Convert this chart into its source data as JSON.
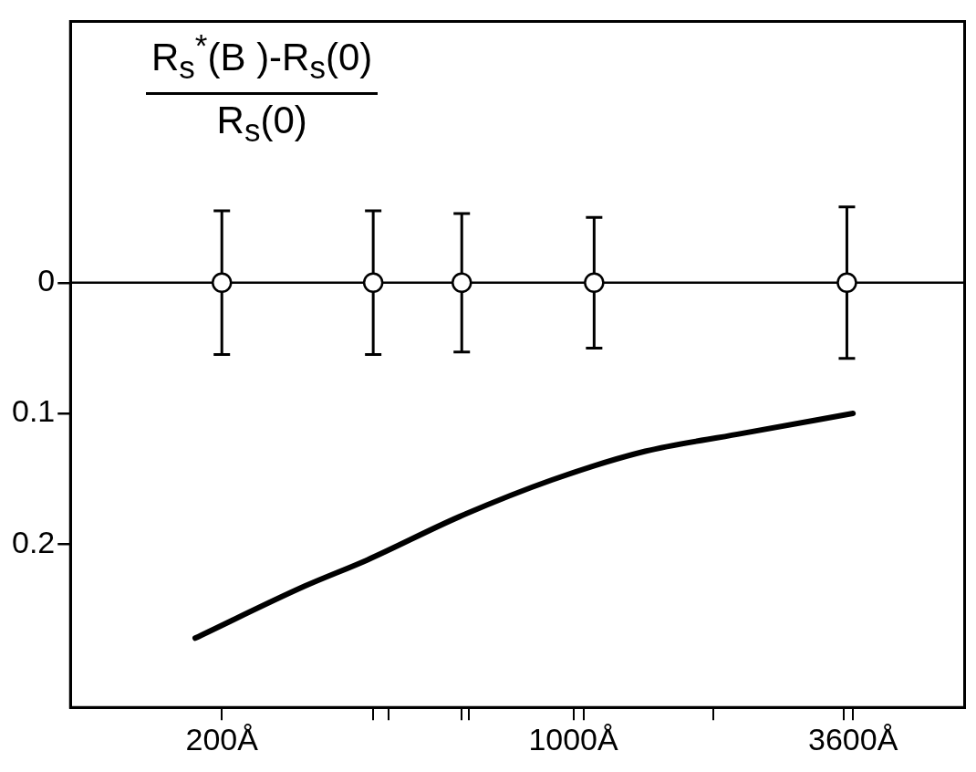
{
  "chart_data": {
    "type": "scatter",
    "ylabel": "R$_{s}$$^{*}$(B )-R$_{s}$(0)\nR$_{s}$(0)",
    "log": "x",
    "xlim": [
      100,
      6000
    ],
    "ylim": [
      0.325,
      -0.2
    ],
    "xticks": [
      {
        "value": 200,
        "label": "200Å"
      },
      {
        "value": 400,
        "label": null
      },
      {
        "value": 430,
        "label": null
      },
      {
        "value": 600,
        "label": null
      },
      {
        "value": 620,
        "label": null
      },
      {
        "value": 1000,
        "label": "1000Å"
      },
      {
        "value": 1050,
        "label": null
      },
      {
        "value": 1900,
        "label": null
      },
      {
        "value": 3450,
        "label": null
      },
      {
        "value": 3600,
        "label": "3600Å"
      }
    ],
    "yticks": [
      0,
      0.1,
      0.2
    ],
    "ref_lines": [
      {
        "axis": "y",
        "value": 0,
        "color": "#000000"
      }
    ],
    "series": [
      {
        "color": "#000000",
        "marker": "circle",
        "x": [
          200,
          400,
          600,
          1100,
          3500
        ],
        "values": [
          0,
          0,
          0,
          0,
          0
        ],
        "errors": [
          0.055,
          0.055,
          0.053,
          0.05,
          0.058
        ]
      },
      {
        "type": "line",
        "color": "#000000",
        "marker": "none",
        "x": [
          177,
          293,
          390,
          594,
          906,
          1390,
          2120,
          3600
        ],
        "values": [
          0.272,
          0.232,
          0.212,
          0.179,
          0.151,
          0.129,
          0.116,
          0.1
        ]
      }
    ]
  }
}
